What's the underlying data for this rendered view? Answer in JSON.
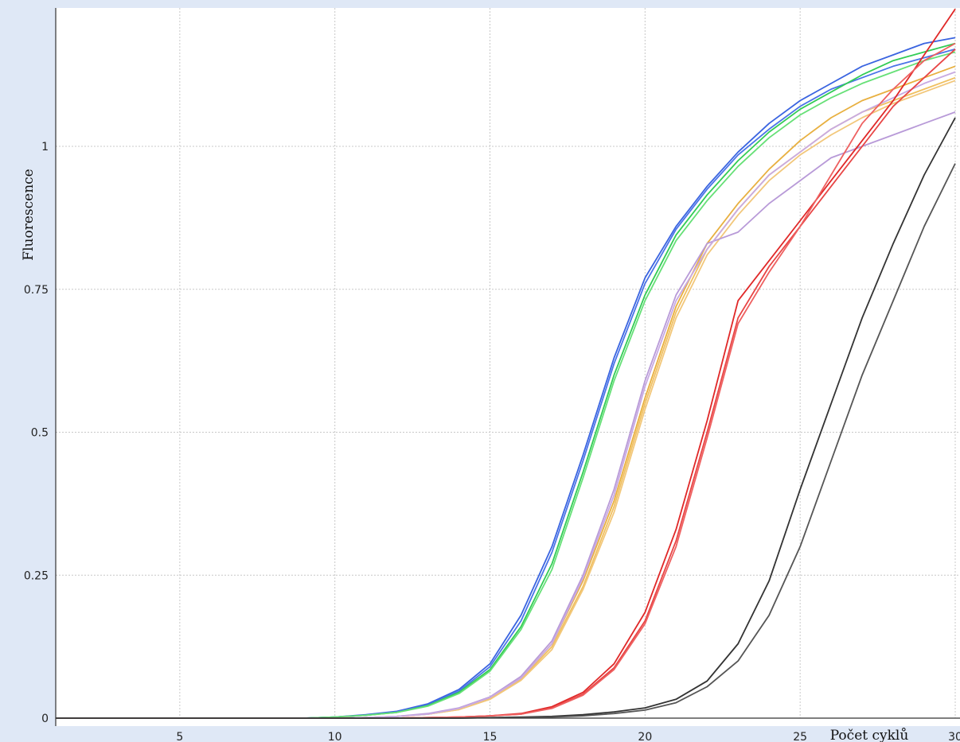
{
  "chart_data": {
    "type": "line",
    "title": "",
    "xlabel": "Počet cyklů",
    "ylabel": "Fluorescence",
    "xlim": [
      1,
      30
    ],
    "ylim": [
      0,
      1.23
    ],
    "x_ticks": [
      5,
      10,
      15,
      20,
      25,
      30
    ],
    "y_ticks": [
      0,
      0.25,
      0.5,
      0.75,
      1
    ],
    "y_tick_labels": [
      "0",
      "0.25",
      "0.5",
      "0.75",
      "1"
    ],
    "grid": true,
    "legend": "none",
    "x": [
      1,
      2,
      3,
      4,
      5,
      6,
      7,
      8,
      9,
      10,
      11,
      12,
      13,
      14,
      15,
      16,
      17,
      18,
      19,
      20,
      21,
      22,
      23,
      24,
      25,
      26,
      27,
      28,
      29,
      30
    ],
    "series": [
      {
        "color": "#3a64e0",
        "values": [
          0,
          0,
          0,
          0,
          0,
          0,
          0,
          0,
          0,
          0.002,
          0.006,
          0.012,
          0.025,
          0.05,
          0.095,
          0.18,
          0.3,
          0.46,
          0.63,
          0.77,
          0.86,
          0.93,
          0.99,
          1.04,
          1.08,
          1.11,
          1.14,
          1.16,
          1.18,
          1.19
        ]
      },
      {
        "color": "#4a74e8",
        "values": [
          0,
          0,
          0,
          0,
          0,
          0,
          0,
          0,
          0,
          0.002,
          0.005,
          0.011,
          0.023,
          0.047,
          0.09,
          0.17,
          0.29,
          0.45,
          0.62,
          0.76,
          0.855,
          0.925,
          0.985,
          1.03,
          1.07,
          1.1,
          1.12,
          1.14,
          1.155,
          1.17
        ]
      },
      {
        "color": "#33cc55",
        "values": [
          0,
          0,
          0,
          0,
          0,
          0,
          0,
          0,
          0,
          0.002,
          0.005,
          0.01,
          0.022,
          0.045,
          0.085,
          0.16,
          0.27,
          0.43,
          0.6,
          0.74,
          0.845,
          0.915,
          0.975,
          1.025,
          1.065,
          1.095,
          1.125,
          1.15,
          1.165,
          1.18
        ]
      },
      {
        "color": "#66e077",
        "values": [
          0,
          0,
          0,
          0,
          0,
          0,
          0,
          0,
          0,
          0.002,
          0.005,
          0.01,
          0.021,
          0.043,
          0.082,
          0.155,
          0.26,
          0.42,
          0.59,
          0.73,
          0.835,
          0.905,
          0.965,
          1.015,
          1.055,
          1.085,
          1.11,
          1.13,
          1.15,
          1.165
        ]
      },
      {
        "color": "#e8b040",
        "values": [
          0,
          0,
          0,
          0,
          0,
          0,
          0,
          0,
          0,
          0,
          0.001,
          0.003,
          0.007,
          0.016,
          0.035,
          0.07,
          0.13,
          0.24,
          0.38,
          0.56,
          0.72,
          0.83,
          0.9,
          0.96,
          1.01,
          1.05,
          1.08,
          1.1,
          1.12,
          1.14
        ]
      },
      {
        "color": "#f0c060",
        "values": [
          0,
          0,
          0,
          0,
          0,
          0,
          0,
          0,
          0,
          0,
          0.001,
          0.003,
          0.007,
          0.015,
          0.033,
          0.068,
          0.125,
          0.23,
          0.37,
          0.55,
          0.71,
          0.82,
          0.89,
          0.95,
          0.99,
          1.03,
          1.06,
          1.08,
          1.1,
          1.12
        ]
      },
      {
        "color": "#f2c77a",
        "values": [
          0,
          0,
          0,
          0,
          0,
          0,
          0,
          0,
          0,
          0,
          0.001,
          0.003,
          0.007,
          0.015,
          0.033,
          0.066,
          0.12,
          0.225,
          0.36,
          0.54,
          0.7,
          0.81,
          0.88,
          0.94,
          0.985,
          1.02,
          1.05,
          1.075,
          1.095,
          1.115
        ]
      },
      {
        "color": "#b89ad8",
        "values": [
          0,
          0,
          0,
          0,
          0,
          0,
          0,
          0,
          0,
          0,
          0.001,
          0.003,
          0.008,
          0.018,
          0.037,
          0.073,
          0.135,
          0.25,
          0.4,
          0.59,
          0.74,
          0.83,
          0.85,
          0.9,
          0.94,
          0.98,
          1.0,
          1.02,
          1.04,
          1.06
        ]
      },
      {
        "color": "#c8aae2",
        "values": [
          0,
          0,
          0,
          0,
          0,
          0,
          0,
          0,
          0,
          0,
          0.001,
          0.003,
          0.007,
          0.017,
          0.036,
          0.07,
          0.13,
          0.245,
          0.39,
          0.58,
          0.73,
          0.82,
          0.89,
          0.95,
          0.99,
          1.03,
          1.06,
          1.085,
          1.11,
          1.13
        ]
      },
      {
        "color": "#e02828",
        "values": [
          0,
          0,
          0,
          0,
          0,
          0,
          0,
          0,
          0,
          0,
          0,
          0,
          0.001,
          0.002,
          0.004,
          0.008,
          0.02,
          0.045,
          0.095,
          0.185,
          0.33,
          0.52,
          0.73,
          0.8,
          0.87,
          0.94,
          1.01,
          1.08,
          1.16,
          1.24
        ]
      },
      {
        "color": "#e84545",
        "values": [
          0,
          0,
          0,
          0,
          0,
          0,
          0,
          0,
          0,
          0,
          0,
          0,
          0.001,
          0.002,
          0.004,
          0.007,
          0.018,
          0.042,
          0.088,
          0.17,
          0.31,
          0.5,
          0.7,
          0.79,
          0.86,
          0.93,
          1.0,
          1.07,
          1.12,
          1.17
        ]
      },
      {
        "color": "#ee6060",
        "values": [
          0,
          0,
          0,
          0,
          0,
          0,
          0,
          0,
          0,
          0,
          0,
          0,
          0.001,
          0.002,
          0.004,
          0.007,
          0.017,
          0.04,
          0.085,
          0.165,
          0.3,
          0.49,
          0.69,
          0.78,
          0.86,
          0.95,
          1.04,
          1.1,
          1.15,
          1.18
        ]
      },
      {
        "color": "#333333",
        "values": [
          0,
          0,
          0,
          0,
          0,
          0,
          0,
          0,
          0,
          0,
          0,
          0,
          0,
          0,
          0.001,
          0.002,
          0.003,
          0.006,
          0.011,
          0.018,
          0.033,
          0.065,
          0.13,
          0.24,
          0.4,
          0.55,
          0.7,
          0.83,
          0.95,
          1.05
        ]
      },
      {
        "color": "#555555",
        "values": [
          0,
          0,
          0,
          0,
          0,
          0,
          0,
          0,
          0,
          0,
          0,
          0,
          0,
          0,
          0.001,
          0.001,
          0.002,
          0.004,
          0.008,
          0.014,
          0.027,
          0.055,
          0.1,
          0.18,
          0.3,
          0.45,
          0.6,
          0.73,
          0.86,
          0.97
        ]
      }
    ]
  }
}
